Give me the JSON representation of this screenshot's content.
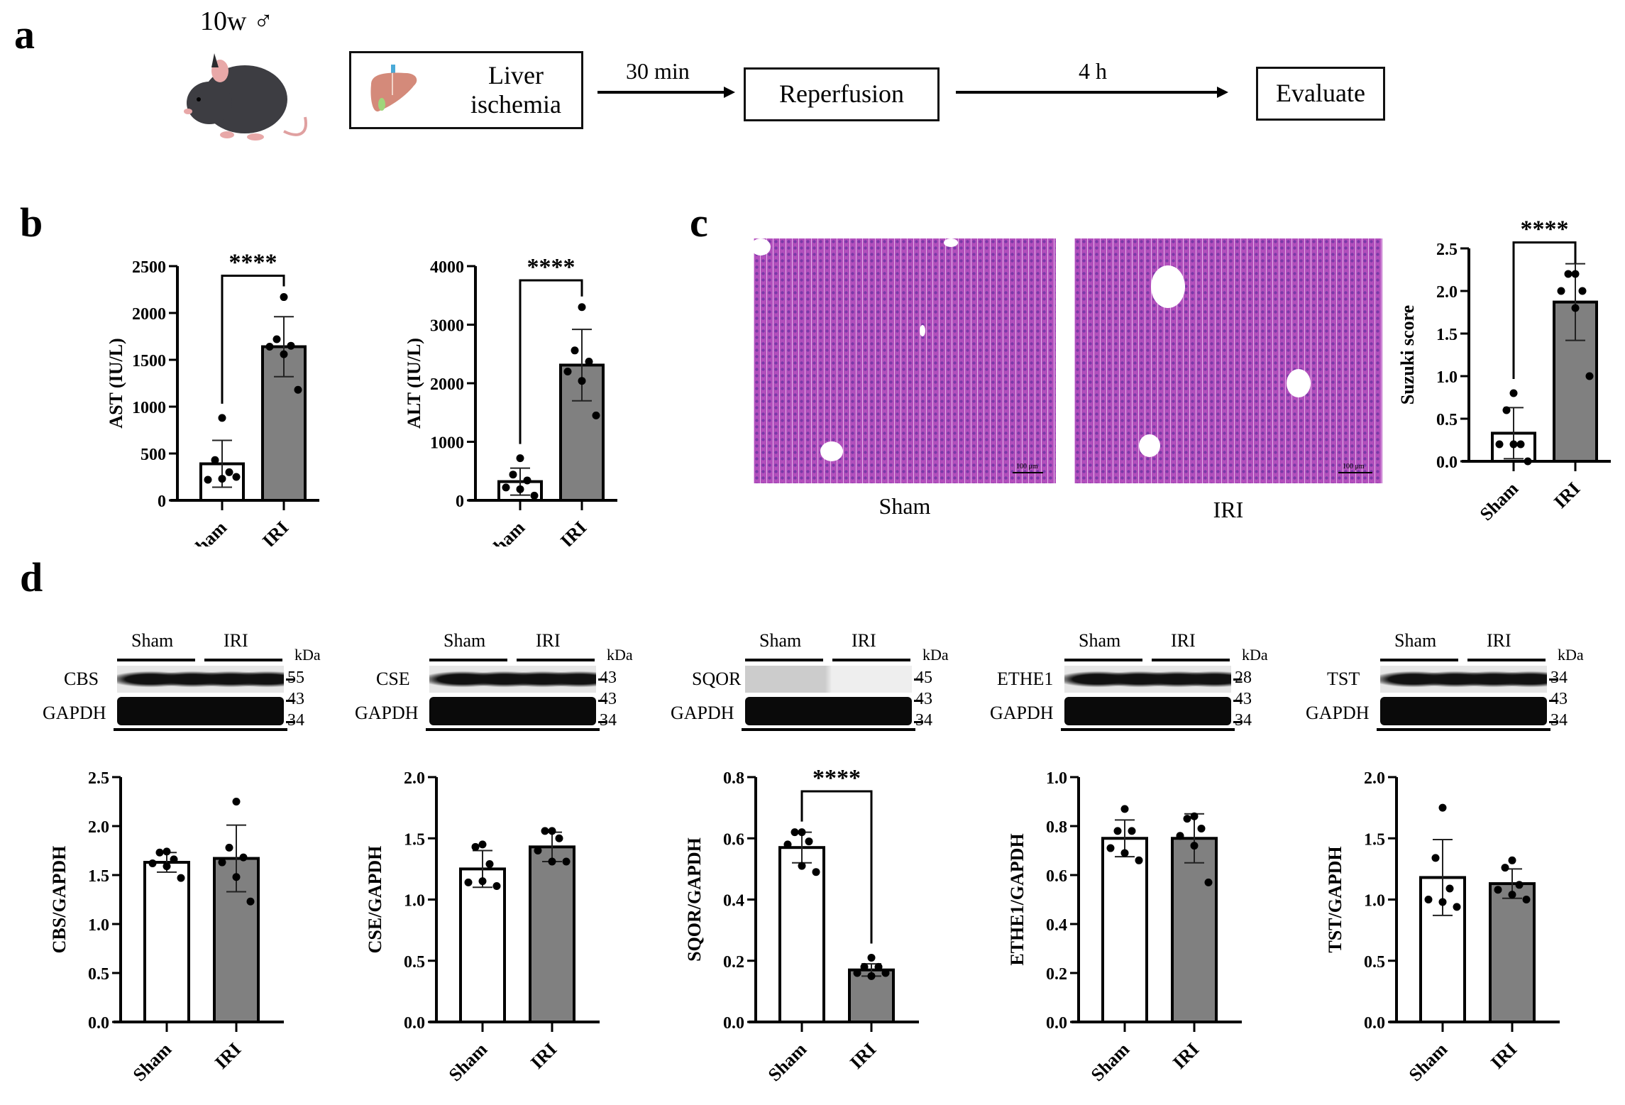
{
  "panels": {
    "a": {
      "letter": "a",
      "mouse_label": "10w ♂",
      "steps": [
        {
          "label": "Liver\nischemia",
          "line1": "Liver",
          "line2": "ischemia"
        },
        {
          "label": "Reperfusion"
        },
        {
          "label": "Evaluate"
        }
      ],
      "arrows": [
        {
          "label": "30 min"
        },
        {
          "label": "4 h"
        }
      ]
    },
    "b": {
      "letter": "b"
    },
    "c": {
      "letter": "c",
      "histology": [
        {
          "label": "Sham",
          "scale_bar": "100 μm"
        },
        {
          "label": "IRI",
          "scale_bar": "100 μm"
        }
      ]
    },
    "d": {
      "letter": "d",
      "blots": [
        {
          "target": "CBS",
          "loading": "GAPDH",
          "groups": [
            "Sham",
            "IRI"
          ],
          "kda_label": "kDa",
          "markers": [
            "55",
            "43",
            "34"
          ]
        },
        {
          "target": "CSE",
          "loading": "GAPDH",
          "groups": [
            "Sham",
            "IRI"
          ],
          "kda_label": "kDa",
          "markers": [
            "43",
            "43",
            "34"
          ]
        },
        {
          "target": "SQOR",
          "loading": "GAPDH",
          "groups": [
            "Sham",
            "IRI"
          ],
          "kda_label": "kDa",
          "markers": [
            "45",
            "43",
            "34"
          ]
        },
        {
          "target": "ETHE1",
          "loading": "GAPDH",
          "groups": [
            "Sham",
            "IRI"
          ],
          "kda_label": "kDa",
          "markers": [
            "28",
            "43",
            "34"
          ]
        },
        {
          "target": "TST",
          "loading": "GAPDH",
          "groups": [
            "Sham",
            "IRI"
          ],
          "kda_label": "kDa",
          "markers": [
            "34",
            "43",
            "34"
          ]
        }
      ]
    }
  },
  "colors": {
    "sham_fill": "#ffffff",
    "iri_fill": "#808080",
    "histology": "#b04ab8",
    "axis": "#000000"
  },
  "chart_data": [
    {
      "id": "ast",
      "type": "bar",
      "categories": [
        "Sham",
        "IRI"
      ],
      "ylabel": "AST (IU/L)",
      "ylim": [
        0,
        2500
      ],
      "yticks": [
        0,
        500,
        1000,
        1500,
        2000,
        2500
      ],
      "series": [
        {
          "name": "mean",
          "values": [
            390,
            1640
          ]
        },
        {
          "name": "sd",
          "values": [
            250,
            320
          ]
        }
      ],
      "points": [
        [
          880,
          430,
          300,
          220,
          230,
          250
        ],
        [
          2170,
          1720,
          1650,
          1640,
          1560,
          1180
        ]
      ],
      "significance": "****"
    },
    {
      "id": "alt",
      "type": "bar",
      "categories": [
        "Sham",
        "IRI"
      ],
      "ylabel": "ALT (IU/L)",
      "ylim": [
        0,
        4000
      ],
      "yticks": [
        0,
        1000,
        2000,
        3000,
        4000
      ],
      "series": [
        {
          "name": "mean",
          "values": [
            320,
            2310
          ]
        },
        {
          "name": "sd",
          "values": [
            230,
            610
          ]
        }
      ],
      "points": [
        [
          720,
          440,
          340,
          220,
          190,
          80
        ],
        [
          3300,
          2560,
          2370,
          2200,
          2040,
          1450
        ]
      ],
      "significance": "****"
    },
    {
      "id": "suzuki",
      "type": "bar",
      "categories": [
        "Sham",
        "IRI"
      ],
      "ylabel": "Suzuki score",
      "ylim": [
        0,
        2.5
      ],
      "yticks": [
        "0.0",
        "0.5",
        "1.0",
        "1.5",
        "2.0",
        "2.5"
      ],
      "series": [
        {
          "name": "mean",
          "values": [
            0.33,
            1.87
          ]
        },
        {
          "name": "sd",
          "values": [
            0.3,
            0.45
          ]
        }
      ],
      "points": [
        [
          0.8,
          0.6,
          0.2,
          0.2,
          0.2,
          0.0
        ],
        [
          2.2,
          2.2,
          2.0,
          2.0,
          1.8,
          1.0
        ]
      ],
      "significance": "****"
    },
    {
      "id": "cbs",
      "type": "bar",
      "categories": [
        "Sham",
        "IRI"
      ],
      "ylabel": "CBS/GAPDH",
      "ylim": [
        0,
        2.5
      ],
      "yticks": [
        "0.0",
        "0.5",
        "1.0",
        "1.5",
        "2.0",
        "2.5"
      ],
      "series": [
        {
          "name": "mean",
          "values": [
            1.63,
            1.67
          ]
        },
        {
          "name": "sd",
          "values": [
            0.1,
            0.34
          ]
        }
      ],
      "points": [
        [
          1.74,
          1.73,
          1.66,
          1.62,
          1.59,
          1.47
        ],
        [
          2.25,
          1.78,
          1.68,
          1.63,
          1.48,
          1.23
        ]
      ],
      "significance": ""
    },
    {
      "id": "cse",
      "type": "bar",
      "categories": [
        "Sham",
        "IRI"
      ],
      "ylabel": "CSE/GAPDH",
      "ylim": [
        0,
        2.0
      ],
      "yticks": [
        "0.0",
        "0.5",
        "1.0",
        "1.5",
        "2.0"
      ],
      "series": [
        {
          "name": "mean",
          "values": [
            1.25,
            1.43
          ]
        },
        {
          "name": "sd",
          "values": [
            0.15,
            0.12
          ]
        }
      ],
      "points": [
        [
          1.45,
          1.43,
          1.29,
          1.14,
          1.15,
          1.11
        ],
        [
          1.56,
          1.56,
          1.5,
          1.4,
          1.31,
          1.31
        ]
      ],
      "significance": ""
    },
    {
      "id": "sqor",
      "type": "bar",
      "categories": [
        "Sham",
        "IRI"
      ],
      "ylabel": "SQOR/GAPDH",
      "ylim": [
        0,
        0.8
      ],
      "yticks": [
        "0.0",
        "0.2",
        "0.4",
        "0.6",
        "0.8"
      ],
      "series": [
        {
          "name": "mean",
          "values": [
            0.57,
            0.17
          ]
        },
        {
          "name": "sd",
          "values": [
            0.05,
            0.02
          ]
        }
      ],
      "points": [
        [
          0.62,
          0.62,
          0.59,
          0.58,
          0.51,
          0.49
        ],
        [
          0.21,
          0.18,
          0.18,
          0.16,
          0.15,
          0.16
        ]
      ],
      "significance": "****"
    },
    {
      "id": "ethe1",
      "type": "bar",
      "categories": [
        "Sham",
        "IRI"
      ],
      "ylabel": "ETHE1/GAPDH",
      "ylim": [
        0,
        1.0
      ],
      "yticks": [
        "0.0",
        "0.2",
        "0.4",
        "0.6",
        "0.8",
        "1.0"
      ],
      "series": [
        {
          "name": "mean",
          "values": [
            0.75,
            0.75
          ]
        },
        {
          "name": "sd",
          "values": [
            0.075,
            0.1
          ]
        }
      ],
      "points": [
        [
          0.87,
          0.78,
          0.78,
          0.71,
          0.69,
          0.66
        ],
        [
          0.84,
          0.83,
          0.79,
          0.76,
          0.72,
          0.57
        ]
      ],
      "significance": ""
    },
    {
      "id": "tst",
      "type": "bar",
      "categories": [
        "Sham",
        "IRI"
      ],
      "ylabel": "TST/GAPDH",
      "ylim": [
        0,
        2.0
      ],
      "yticks": [
        "0.0",
        "0.5",
        "1.0",
        "1.5",
        "2.0"
      ],
      "series": [
        {
          "name": "mean",
          "values": [
            1.18,
            1.13
          ]
        },
        {
          "name": "sd",
          "values": [
            0.31,
            0.12
          ]
        }
      ],
      "points": [
        [
          1.75,
          1.34,
          1.09,
          1.0,
          0.98,
          0.94
        ],
        [
          1.32,
          1.26,
          1.12,
          1.08,
          1.04,
          1.0
        ]
      ],
      "significance": ""
    }
  ]
}
